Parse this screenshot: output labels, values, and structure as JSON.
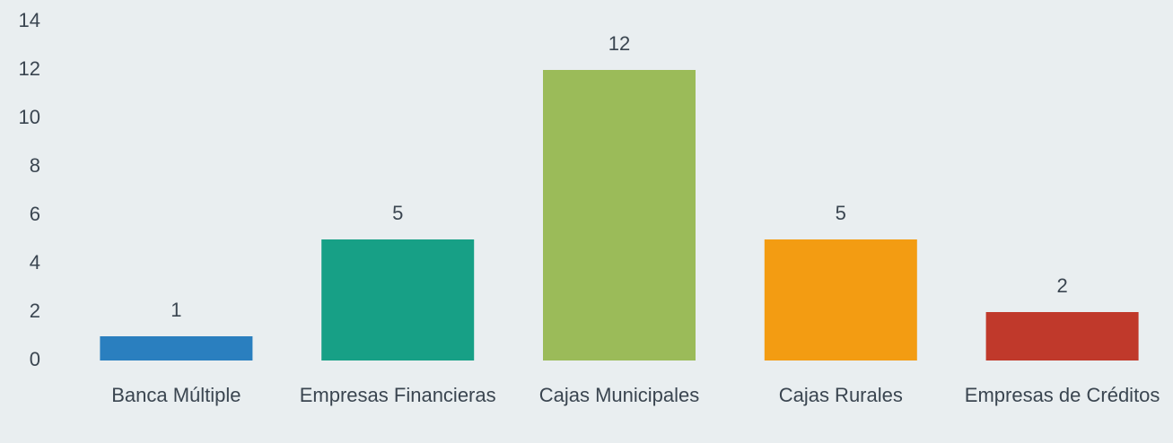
{
  "chart_data": {
    "type": "bar",
    "categories": [
      "Banca Múltiple",
      "Empresas Financieras",
      "Cajas Municipales",
      "Cajas Rurales",
      "Empresas de Créditos"
    ],
    "values": [
      1,
      5,
      12,
      5,
      2
    ],
    "colors": [
      "#2a7fbf",
      "#17a086",
      "#9bbb59",
      "#f39c12",
      "#c0392b"
    ],
    "ylim": [
      0,
      14
    ],
    "yticks": [
      0,
      2,
      4,
      6,
      8,
      10,
      12,
      14
    ],
    "grid": false
  }
}
